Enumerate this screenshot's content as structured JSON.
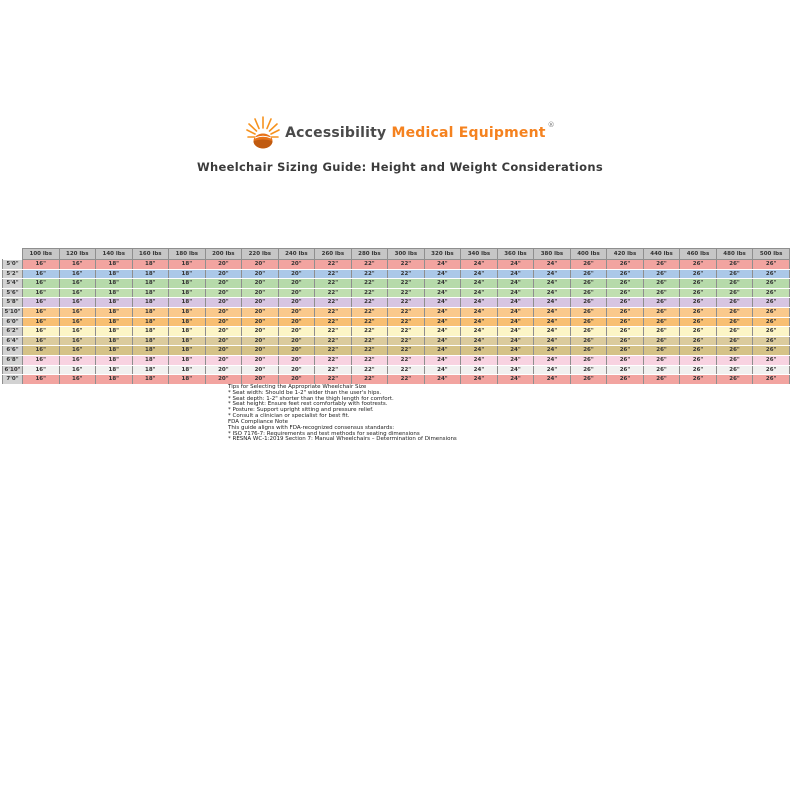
{
  "logo": {
    "brand_primary": "Accessibility",
    "brand_secondary": "Medical Equipment",
    "registered_mark": "®",
    "icon": "sunburst-icon"
  },
  "title": "Wheelchair Sizing Guide: Height and Weight Considerations",
  "palette": {
    "brand_orange": "#f5821f",
    "brand_gray": "#4a4a4a",
    "title_color": "#3b3b3b",
    "header_bg": "#c6c6c6",
    "label_bg": "#d2d2d2",
    "grid_line": "#8f8f8f"
  },
  "table": {
    "corner_label": "",
    "weight_headers": [
      "100 lbs",
      "120 lbs",
      "140 lbs",
      "160 lbs",
      "180 lbs",
      "200 lbs",
      "220 lbs",
      "240 lbs",
      "260 lbs",
      "280 lbs",
      "300 lbs",
      "320 lbs",
      "340 lbs",
      "360 lbs",
      "380 lbs",
      "400 lbs",
      "420 lbs",
      "440 lbs",
      "460 lbs",
      "480 lbs",
      "500 lbs"
    ],
    "rows": [
      {
        "height": "5'0\"",
        "color": "#f2a4a0",
        "values": [
          "16\"",
          "16\"",
          "18\"",
          "18\"",
          "18\"",
          "20\"",
          "20\"",
          "20\"",
          "22\"",
          "22\"",
          "22\"",
          "24\"",
          "24\"",
          "24\"",
          "24\"",
          "26\"",
          "26\"",
          "26\"",
          "26\"",
          "26\"",
          "26\""
        ]
      },
      {
        "height": "5'2\"",
        "color": "#abc8e8",
        "values": [
          "16\"",
          "16\"",
          "18\"",
          "18\"",
          "18\"",
          "20\"",
          "20\"",
          "20\"",
          "22\"",
          "22\"",
          "22\"",
          "24\"",
          "24\"",
          "24\"",
          "24\"",
          "26\"",
          "26\"",
          "26\"",
          "26\"",
          "26\"",
          "26\""
        ]
      },
      {
        "height": "5'4\"",
        "color": "#b6daaa",
        "values": [
          "16\"",
          "16\"",
          "18\"",
          "18\"",
          "18\"",
          "20\"",
          "20\"",
          "20\"",
          "22\"",
          "22\"",
          "22\"",
          "24\"",
          "24\"",
          "24\"",
          "24\"",
          "26\"",
          "26\"",
          "26\"",
          "26\"",
          "26\"",
          "26\""
        ]
      },
      {
        "height": "5'6\"",
        "color": "#c0dfb0",
        "values": [
          "16\"",
          "16\"",
          "18\"",
          "18\"",
          "18\"",
          "20\"",
          "20\"",
          "20\"",
          "22\"",
          "22\"",
          "22\"",
          "24\"",
          "24\"",
          "24\"",
          "24\"",
          "26\"",
          "26\"",
          "26\"",
          "26\"",
          "26\"",
          "26\""
        ]
      },
      {
        "height": "5'8\"",
        "color": "#d7c5e2",
        "values": [
          "16\"",
          "16\"",
          "18\"",
          "18\"",
          "18\"",
          "20\"",
          "20\"",
          "20\"",
          "22\"",
          "22\"",
          "22\"",
          "24\"",
          "24\"",
          "24\"",
          "24\"",
          "26\"",
          "26\"",
          "26\"",
          "26\"",
          "26\"",
          "26\""
        ]
      },
      {
        "height": "5'10\"",
        "color": "#fac98c",
        "values": [
          "16\"",
          "16\"",
          "18\"",
          "18\"",
          "18\"",
          "20\"",
          "20\"",
          "20\"",
          "22\"",
          "22\"",
          "22\"",
          "24\"",
          "24\"",
          "24\"",
          "24\"",
          "26\"",
          "26\"",
          "26\"",
          "26\"",
          "26\"",
          "26\""
        ]
      },
      {
        "height": "6'0\"",
        "color": "#f8bf72",
        "values": [
          "16\"",
          "16\"",
          "18\"",
          "18\"",
          "18\"",
          "20\"",
          "20\"",
          "20\"",
          "22\"",
          "22\"",
          "22\"",
          "24\"",
          "24\"",
          "24\"",
          "24\"",
          "26\"",
          "26\"",
          "26\"",
          "26\"",
          "26\"",
          "26\""
        ]
      },
      {
        "height": "6'2\"",
        "color": "#fcf5c6",
        "values": [
          "16\"",
          "16\"",
          "18\"",
          "18\"",
          "18\"",
          "20\"",
          "20\"",
          "20\"",
          "22\"",
          "22\"",
          "22\"",
          "24\"",
          "24\"",
          "24\"",
          "24\"",
          "26\"",
          "26\"",
          "26\"",
          "26\"",
          "26\"",
          "26\""
        ]
      },
      {
        "height": "6'4\"",
        "color": "#dbcb9d",
        "values": [
          "16\"",
          "16\"",
          "18\"",
          "18\"",
          "18\"",
          "20\"",
          "20\"",
          "20\"",
          "22\"",
          "22\"",
          "22\"",
          "24\"",
          "24\"",
          "24\"",
          "24\"",
          "26\"",
          "26\"",
          "26\"",
          "26\"",
          "26\"",
          "26\""
        ]
      },
      {
        "height": "6'6\"",
        "color": "#d5c287",
        "values": [
          "16\"",
          "16\"",
          "18\"",
          "18\"",
          "18\"",
          "20\"",
          "20\"",
          "20\"",
          "22\"",
          "22\"",
          "22\"",
          "24\"",
          "24\"",
          "24\"",
          "24\"",
          "26\"",
          "26\"",
          "26\"",
          "26\"",
          "26\"",
          "26\""
        ]
      },
      {
        "height": "6'8\"",
        "color": "#f8d3e1",
        "values": [
          "16\"",
          "16\"",
          "18\"",
          "18\"",
          "18\"",
          "20\"",
          "20\"",
          "20\"",
          "22\"",
          "22\"",
          "22\"",
          "24\"",
          "24\"",
          "24\"",
          "24\"",
          "26\"",
          "26\"",
          "26\"",
          "26\"",
          "26\"",
          "26\""
        ]
      },
      {
        "height": "6'10\"",
        "color": "#f1f0ef",
        "values": [
          "16\"",
          "16\"",
          "18\"",
          "18\"",
          "18\"",
          "20\"",
          "20\"",
          "20\"",
          "22\"",
          "22\"",
          "22\"",
          "24\"",
          "24\"",
          "24\"",
          "24\"",
          "26\"",
          "26\"",
          "26\"",
          "26\"",
          "26\"",
          "26\""
        ]
      },
      {
        "height": "7'0\"",
        "color": "#f2a4a0",
        "values": [
          "16\"",
          "16\"",
          "18\"",
          "18\"",
          "18\"",
          "20\"",
          "20\"",
          "20\"",
          "22\"",
          "22\"",
          "22\"",
          "24\"",
          "24\"",
          "24\"",
          "24\"",
          "26\"",
          "26\"",
          "26\"",
          "26\"",
          "26\"",
          "26\""
        ]
      }
    ]
  },
  "tips": {
    "title": "Tips for Selecting the Appropriate Wheelchair Size",
    "items": [
      "* Seat width: Should be 1-2\" wider than the user's hips.",
      "* Seat depth: 1-2\" shorter than the thigh length for comfort.",
      "* Seat height: Ensure feet rest comfortably with footrests.",
      "* Posture: Support upright sitting and pressure relief.",
      "* Consult a clinician or specialist for best fit."
    ]
  },
  "compliance": {
    "title": "FDA Compliance Note",
    "intro": "This guide aligns with FDA-recognized consensus standards:",
    "items": [
      "* ISO 7176-7: Requirements and test methods for seating dimensions",
      "* RESNA WC-1:2019 Section 7: Manual Wheelchairs – Determination of Dimensions"
    ]
  }
}
